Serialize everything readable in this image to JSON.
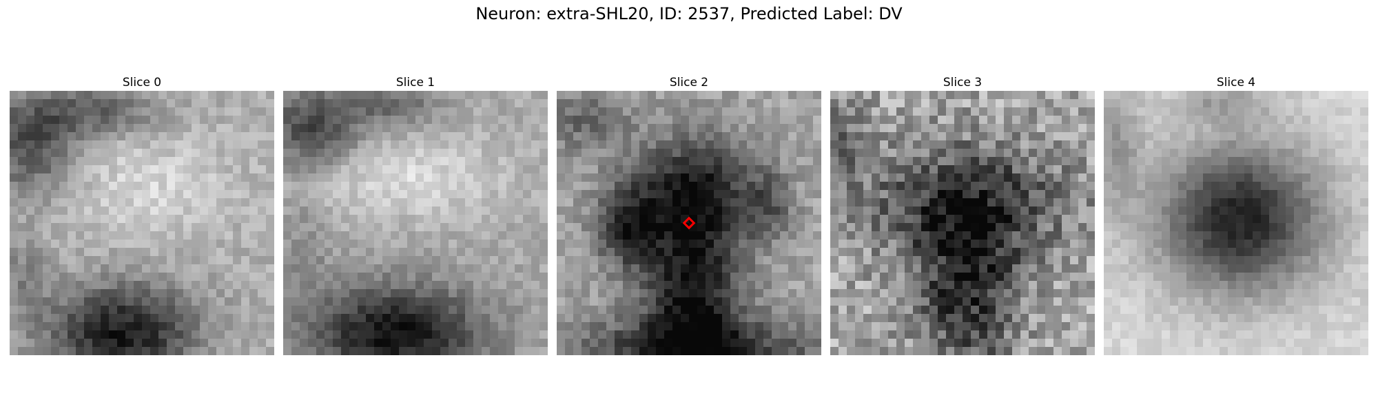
{
  "figure": {
    "title": "Neuron: extra-SHL20, ID: 2537, Predicted Label: DV"
  },
  "slices": [
    {
      "title": "Slice 0"
    },
    {
      "title": "Slice 1"
    },
    {
      "title": "Slice 2",
      "marker": "red-diamond"
    },
    {
      "title": "Slice 3"
    },
    {
      "title": "Slice 4"
    }
  ],
  "colors": {
    "marker": "#ff0000",
    "background": "#ffffff"
  },
  "colormap": "grayscale"
}
